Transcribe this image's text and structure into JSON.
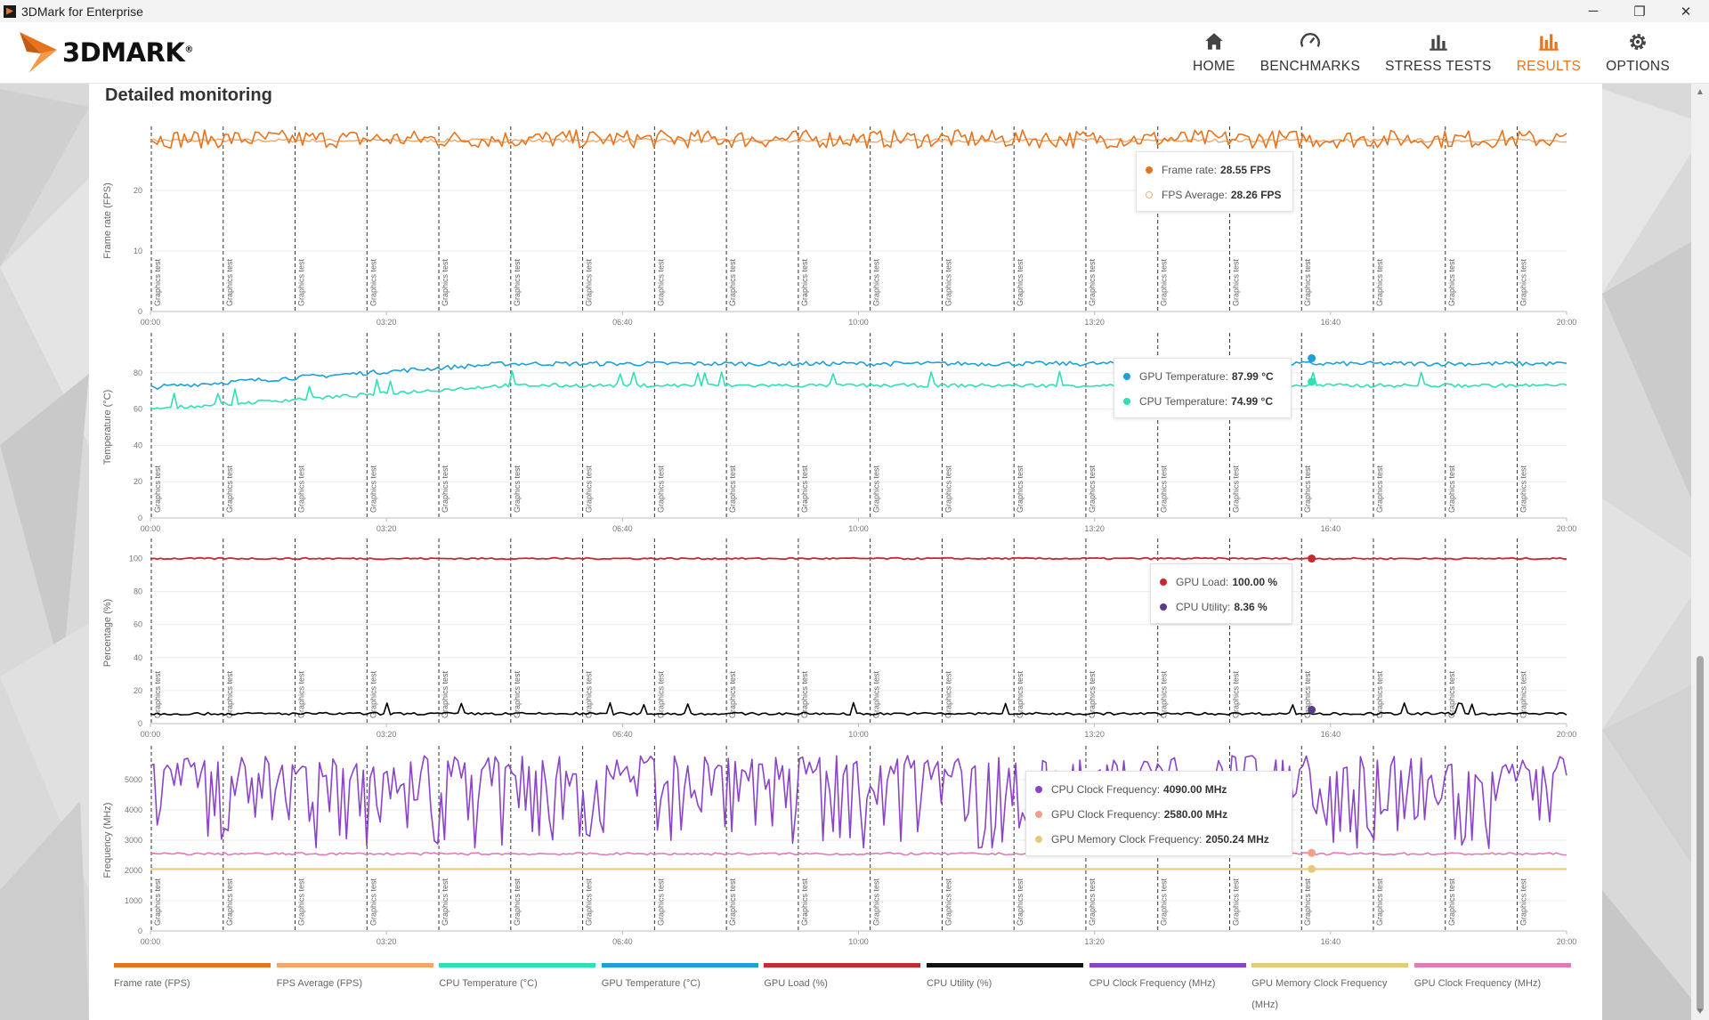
{
  "window": {
    "title": "3DMark for Enterprise",
    "controls": [
      "─",
      "❐",
      "✕"
    ]
  },
  "header": {
    "logo_text": "3DMARK",
    "logo_reg": "®",
    "nav": [
      {
        "label": "HOME",
        "icon": "home-icon"
      },
      {
        "label": "BENCHMARKS",
        "icon": "speedometer-icon"
      },
      {
        "label": "STRESS TESTS",
        "icon": "bar-chart-icon"
      },
      {
        "label": "RESULTS",
        "icon": "results-chart-icon",
        "active": true
      },
      {
        "label": "OPTIONS",
        "icon": "gear-icon"
      }
    ]
  },
  "main": {
    "section_title": "Detailed monitoring"
  },
  "colors": {
    "accent": "#e8731d",
    "frame_rate": "#e8731d",
    "fps_average": "#f2a66a",
    "cpu_temperature": "#2ee0b4",
    "gpu_temperature": "#1ba1d8",
    "gpu_load": "#c8282e",
    "cpu_utility": "#000000",
    "cpu_clock": "#8b44c9",
    "gpu_memory_clock": "#e6c97a",
    "gpu_clock": "#e07aba"
  },
  "chart_data": [
    {
      "type": "line",
      "ylabel": "Frame rate (FPS)",
      "ylim": [
        0,
        30
      ],
      "yticks": [
        0,
        10,
        20
      ],
      "xlim": [
        "00:00",
        "20:00"
      ],
      "xticks": [
        "00:00",
        "03:20",
        "06:40",
        "10:00",
        "13:20",
        "16:40",
        "20:00"
      ],
      "markers": {
        "label": "Graphics test",
        "count": 20
      },
      "series": [
        {
          "name": "Frame rate",
          "unit": "FPS",
          "typical_value": 28.5,
          "noise": 1.5
        },
        {
          "name": "FPS Average",
          "unit": "FPS",
          "typical_value": 28.26,
          "noise": 0.3
        }
      ],
      "tooltip": [
        {
          "label": "Frame rate:",
          "value": "28.55 FPS"
        },
        {
          "label": "FPS Average:",
          "value": "28.26 FPS"
        }
      ]
    },
    {
      "type": "line",
      "ylabel": "Temperature (°C)",
      "ylim": [
        0,
        100
      ],
      "yticks": [
        0,
        20,
        40,
        60,
        80
      ],
      "xlim": [
        "00:00",
        "20:00"
      ],
      "xticks": [
        "00:00",
        "03:20",
        "06:40",
        "10:00",
        "13:20",
        "16:40",
        "20:00"
      ],
      "markers": {
        "label": "Graphics test",
        "count": 20
      },
      "series": [
        {
          "name": "GPU Temperature",
          "unit": "°C",
          "start_value": 72,
          "typical_value": 85
        },
        {
          "name": "CPU Temperature",
          "unit": "°C",
          "start_value": 60,
          "typical_value": 73
        }
      ],
      "tooltip": [
        {
          "label": "GPU Temperature:",
          "value": "87.99 °C"
        },
        {
          "label": "CPU Temperature:",
          "value": "74.99 °C"
        }
      ]
    },
    {
      "type": "line",
      "ylabel": "Percentage (%)",
      "ylim": [
        0,
        110
      ],
      "yticks": [
        0,
        20,
        40,
        60,
        80,
        100
      ],
      "xlim": [
        "00:00",
        "20:00"
      ],
      "xticks": [
        "00:00",
        "03:20",
        "06:40",
        "10:00",
        "13:20",
        "16:40",
        "20:00"
      ],
      "markers": {
        "label": "Graphics test",
        "count": 20
      },
      "series": [
        {
          "name": "GPU Load",
          "unit": "%",
          "typical_value": 100
        },
        {
          "name": "CPU Utility",
          "unit": "%",
          "typical_value": 6
        }
      ],
      "tooltip": [
        {
          "label": "GPU Load:",
          "value": "100.00 %"
        },
        {
          "label": "CPU Utility:",
          "value": "8.36 %"
        }
      ]
    },
    {
      "type": "line",
      "ylabel": "Frequency (MHz)",
      "ylim": [
        0,
        6000
      ],
      "yticks": [
        0,
        1000,
        2000,
        3000,
        4000,
        5000
      ],
      "xlim": [
        "00:00",
        "20:00"
      ],
      "xticks": [
        "00:00",
        "03:20",
        "06:40",
        "10:00",
        "13:20",
        "16:40",
        "20:00"
      ],
      "markers": {
        "label": "Graphics test",
        "count": 20
      },
      "series": [
        {
          "name": "CPU Clock Frequency",
          "unit": "MHz",
          "range": [
            2700,
            5800
          ]
        },
        {
          "name": "GPU Clock Frequency",
          "unit": "MHz",
          "typical_value": 2550
        },
        {
          "name": "GPU Memory Clock Frequency",
          "unit": "MHz",
          "typical_value": 2050.24
        }
      ],
      "tooltip": [
        {
          "label": "CPU Clock Frequency:",
          "value": "4090.00 MHz"
        },
        {
          "label": "GPU Clock Frequency:",
          "value": "2580.00 MHz"
        },
        {
          "label": "GPU Memory Clock Frequency:",
          "value": "2050.24 MHz"
        }
      ]
    }
  ],
  "legend": [
    {
      "label": "Frame rate (FPS)",
      "color": "#e8731d"
    },
    {
      "label": "FPS Average (FPS)",
      "color": "#f2a66a"
    },
    {
      "label": "CPU Temperature (°C)",
      "color": "#2ee0b4"
    },
    {
      "label": "GPU Temperature (°C)",
      "color": "#1ba1d8"
    },
    {
      "label": "GPU Load (%)",
      "color": "#c8282e"
    },
    {
      "label": "CPU Utility (%)",
      "color": "#111111"
    },
    {
      "label": "CPU Clock Frequency (MHz)",
      "color": "#8b44c9"
    },
    {
      "label": "GPU Memory Clock Frequency (MHz)",
      "color": "#e6c97a"
    },
    {
      "label": "GPU Clock Frequency (MHz)",
      "color": "#e07aba"
    }
  ]
}
